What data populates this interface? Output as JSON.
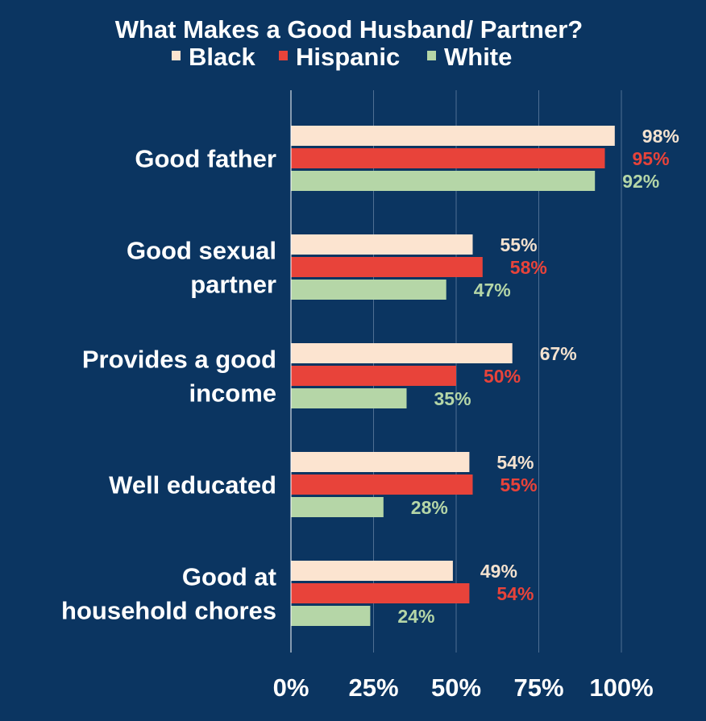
{
  "chart_data": {
    "type": "bar",
    "orientation": "horizontal",
    "title": "What Makes a Good Husband/ Partner?",
    "categories": [
      [
        "Good father"
      ],
      [
        "Good sexual",
        "partner"
      ],
      [
        "Provides a good",
        "income"
      ],
      [
        "Well educated"
      ],
      [
        "Good at",
        "household chores"
      ]
    ],
    "series": [
      {
        "name": "Black",
        "color": "#fce4d0",
        "values": [
          98,
          55,
          67,
          54,
          49
        ],
        "labels": [
          "98%",
          "55%",
          "67%",
          "54%",
          "49%"
        ]
      },
      {
        "name": "Hispanic",
        "color": "#e8433a",
        "values": [
          95,
          58,
          50,
          55,
          54
        ],
        "labels": [
          "95%",
          "58%",
          "50%",
          "55%",
          "54%"
        ]
      },
      {
        "name": "White",
        "color": "#b5d6a7",
        "values": [
          92,
          47,
          35,
          28,
          24
        ],
        "labels": [
          "92%",
          "47%",
          "35%",
          "28%",
          "24%"
        ]
      }
    ],
    "xlim": [
      0,
      100
    ],
    "xticks": [
      0,
      25,
      50,
      75,
      100
    ],
    "xtick_labels": [
      "0%",
      "25%",
      "50%",
      "75%",
      "100%"
    ],
    "legend_position": "top",
    "grid": true,
    "background": "#0b3561",
    "grid_color": "#4f6f93",
    "axis_color": "#ffffff"
  }
}
